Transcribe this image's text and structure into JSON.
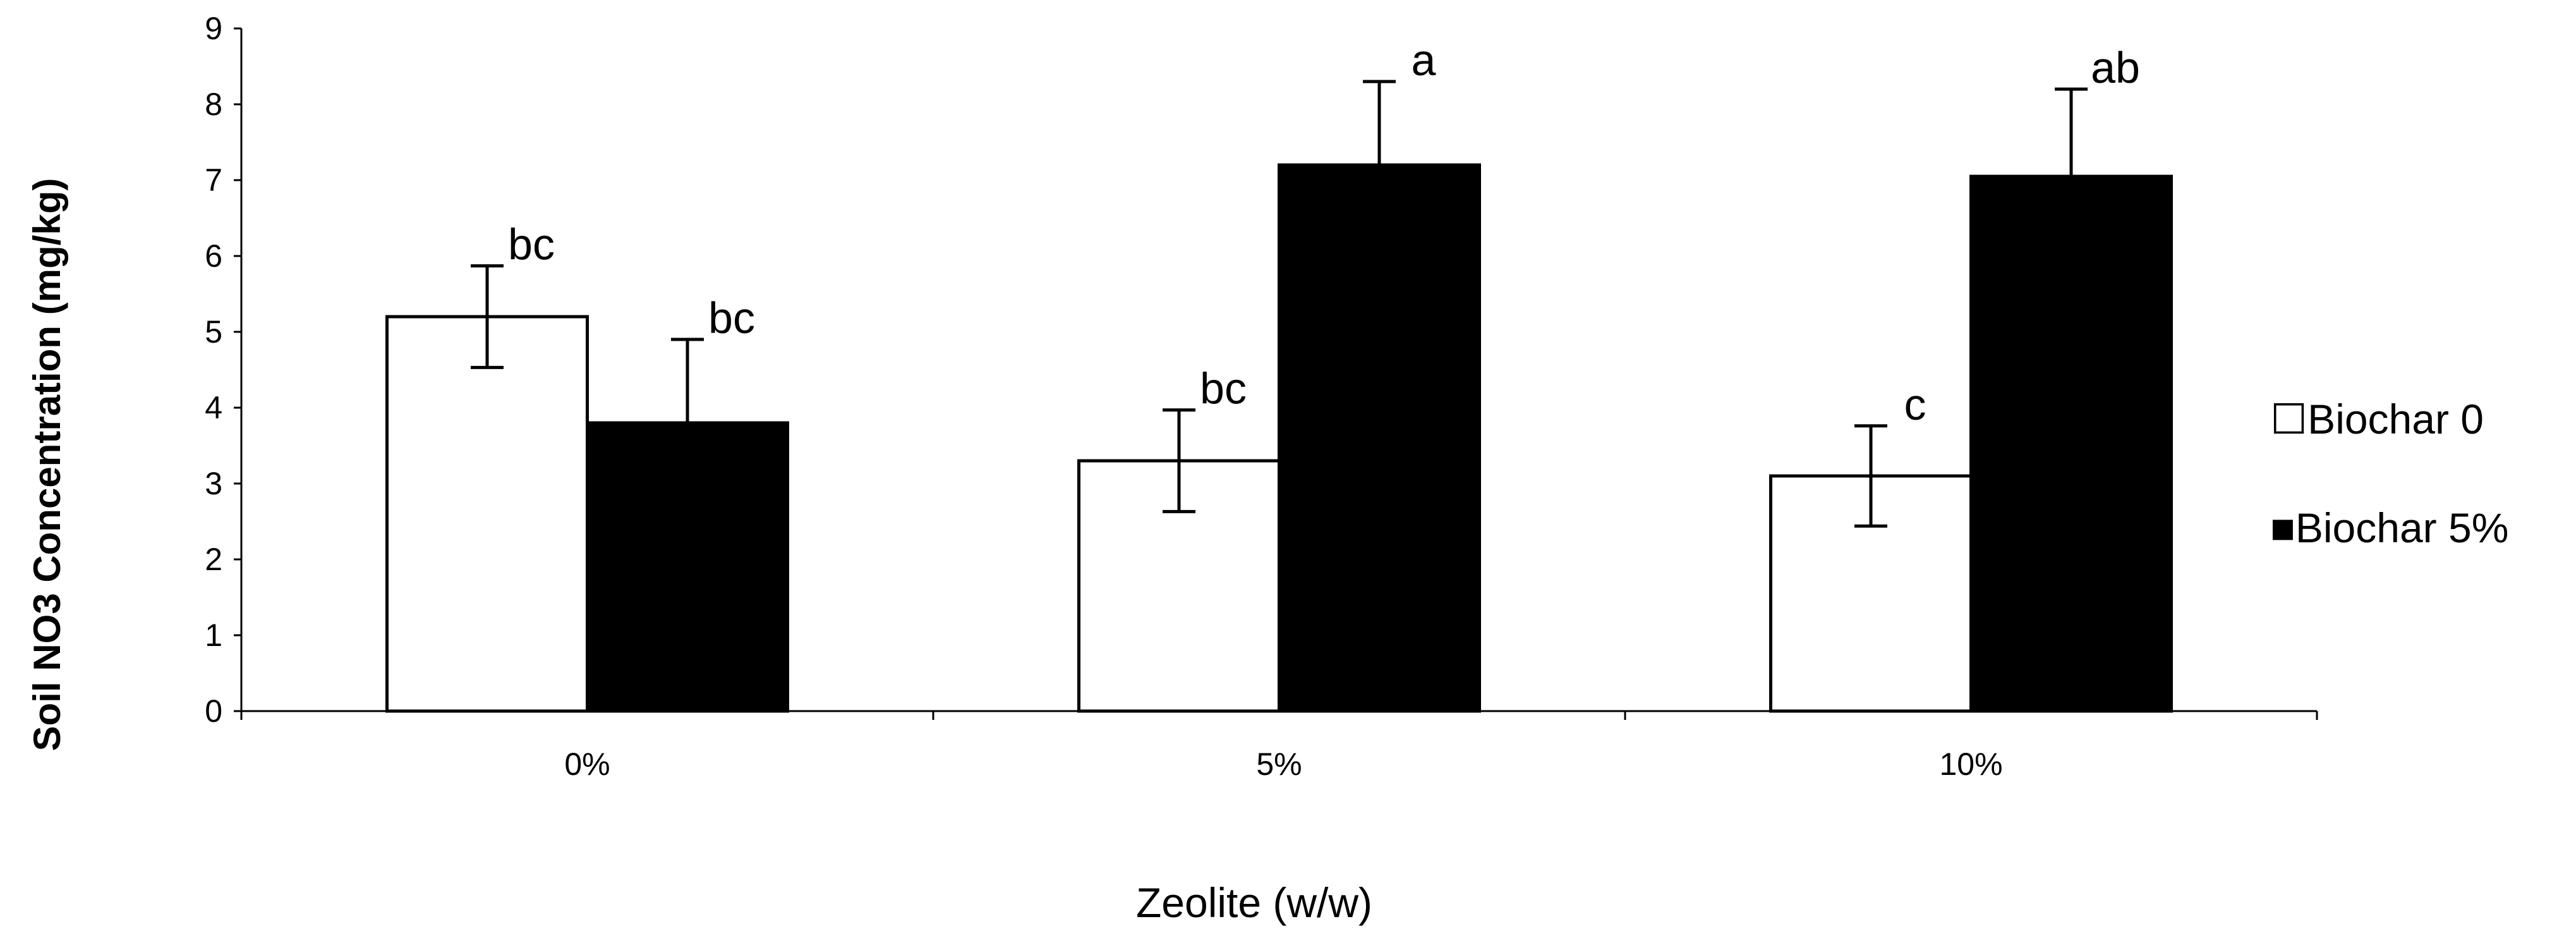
{
  "chart_data": {
    "type": "bar",
    "categories": [
      "0%",
      "5%",
      "10%"
    ],
    "series": [
      {
        "name": "Biochar 0",
        "fill": "#ffffff",
        "values": [
          5.2,
          3.3,
          3.1
        ],
        "errors": [
          0.67,
          0.67,
          0.66
        ],
        "labels": [
          "bc",
          "bc",
          "c"
        ]
      },
      {
        "name": "Biochar 5%",
        "fill": "#000000",
        "values": [
          3.8,
          7.2,
          7.05
        ],
        "errors": [
          1.1,
          1.1,
          1.15
        ],
        "labels": [
          "bc",
          "a",
          "ab"
        ]
      }
    ],
    "xlabel": "Zeolite (w/w)",
    "ylabel": "Soil NO3 Concentration (mg/kg)",
    "ylim": [
      0,
      9
    ],
    "yticks": [
      "0",
      "1",
      "2",
      "3",
      "4",
      "5",
      "6",
      "7",
      "8",
      "9"
    ],
    "grid": false,
    "legend": {
      "position": "right",
      "items": [
        "☐Biochar 0",
        "■Biochar 5%"
      ]
    }
  }
}
